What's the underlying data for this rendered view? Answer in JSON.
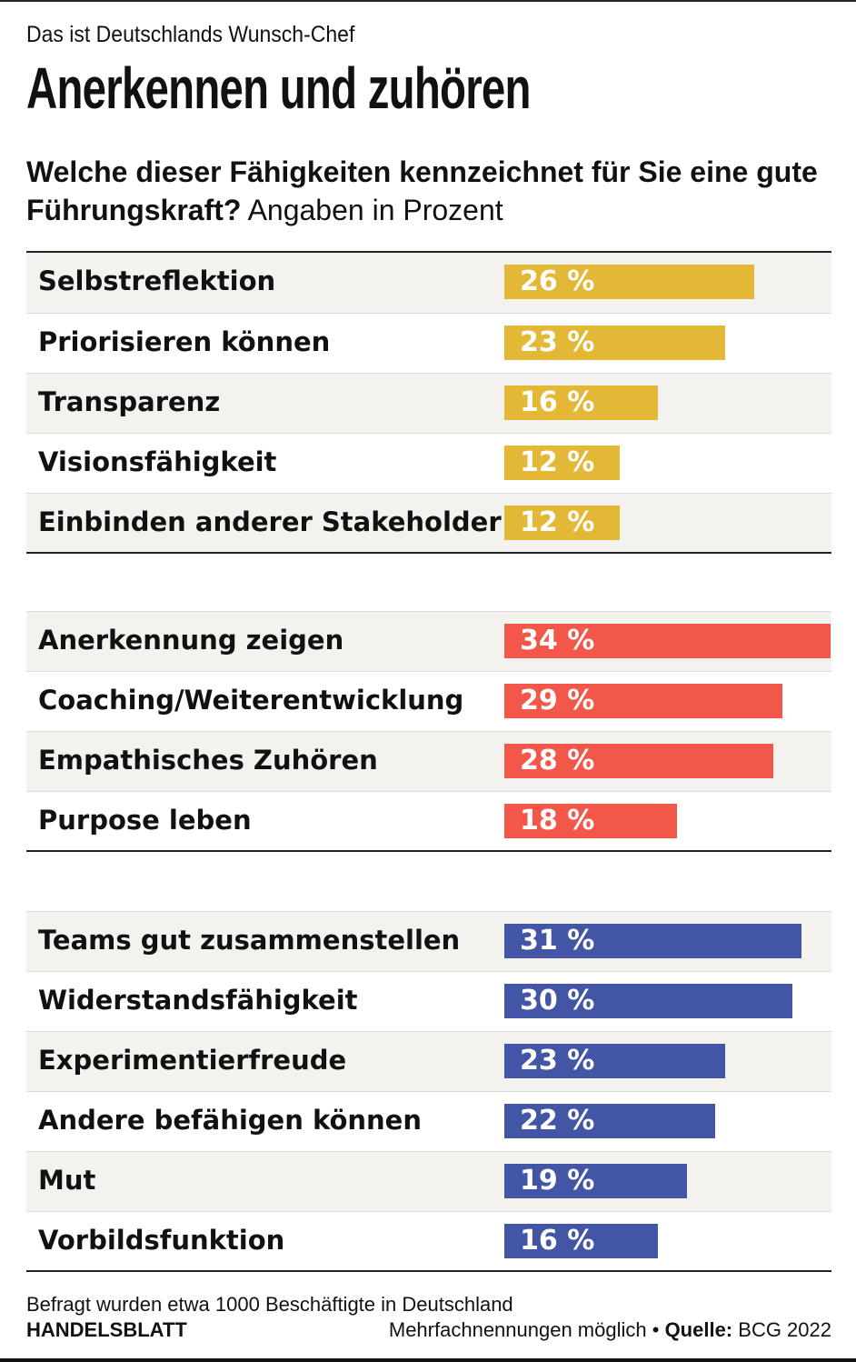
{
  "header": {
    "kicker": "Das ist Deutschlands Wunsch-Chef",
    "title": "Anerkennen und zuhören",
    "question_bold": "Welche dieser Fähigkeiten kennzeichnet für Sie eine gute Führungskraft?",
    "question_unit": "Angaben in Prozent"
  },
  "chart_data": {
    "type": "bar",
    "orientation": "horizontal",
    "unit": "%",
    "xlim": [
      0,
      34
    ],
    "groups": [
      {
        "color": "#e4b837",
        "categories": [
          "Selbstreflektion",
          "Priorisieren können",
          "Transparenz",
          "Visionsfähigkeit",
          "Einbinden anderer Stakeholder"
        ],
        "values": [
          26,
          23,
          16,
          12,
          12
        ]
      },
      {
        "color": "#f2574a",
        "categories": [
          "Anerkennung zeigen",
          "Coaching/Weiterentwicklung",
          "Empathisches Zuhören",
          "Purpose leben"
        ],
        "values": [
          34,
          29,
          28,
          18
        ]
      },
      {
        "color": "#4355a5",
        "categories": [
          "Teams gut zusammenstellen",
          "Widerstandsfähigkeit",
          "Experimentierfreude",
          "Andere befähigen können",
          "Mut",
          "Vorbildsfunktion"
        ],
        "values": [
          31,
          30,
          23,
          22,
          19,
          16
        ]
      }
    ]
  },
  "footer": {
    "note": "Befragt wurden etwa 1000 Beschäftigte in Deutschland",
    "brand": "HANDELSBLATT",
    "multiple": "Mehrfachnennungen möglich •",
    "source_label": "Quelle:",
    "source": "BCG 2022"
  }
}
